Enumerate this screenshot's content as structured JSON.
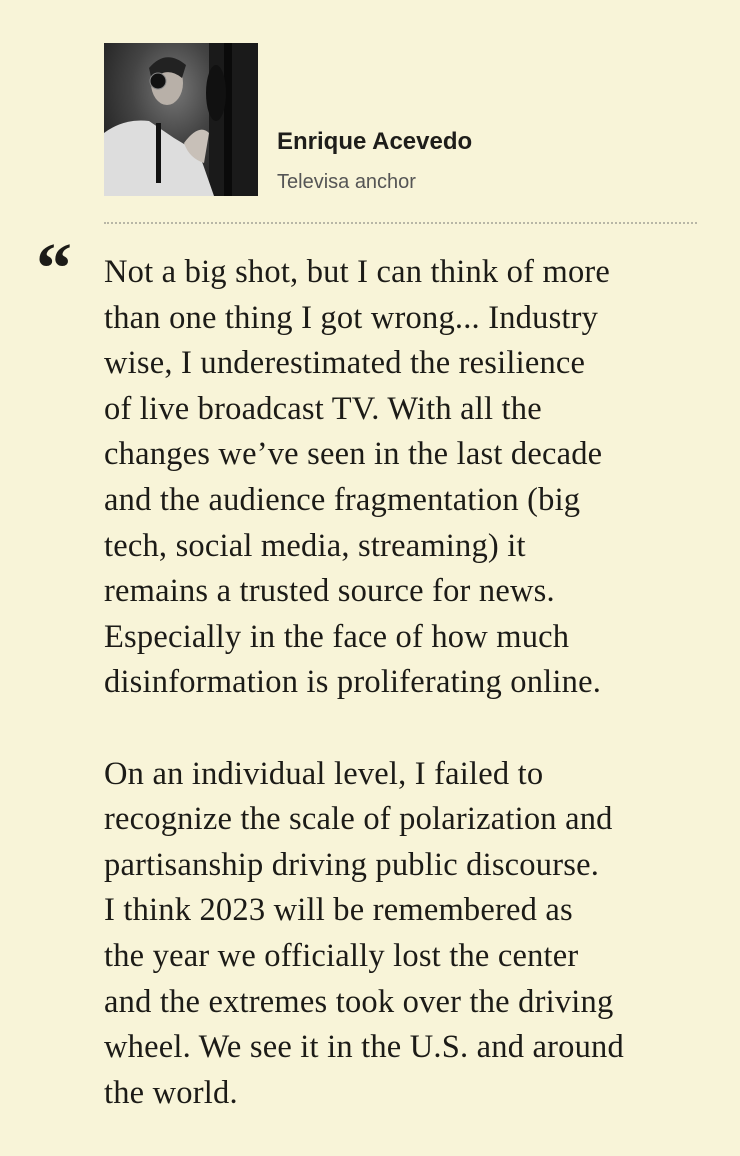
{
  "author": {
    "name": "Enrique Acevedo",
    "role": "Televisa anchor",
    "photo": "portrait-photo"
  },
  "quote_icon": "opening-quote-mark",
  "quote": {
    "paragraphs": [
      [
        "Not a big shot, but I can think of more",
        "than one thing I got wrong... Industry",
        "wise, I underestimated the resilience",
        "of live broadcast TV. With all the",
        "changes we’ve seen in the last decade",
        "and the audience fragmentation (big",
        "tech, social media, streaming) it",
        "remains a trusted source for news.",
        "Especially in the face of how much",
        "disinformation is proliferating online."
      ],
      [
        "On an individual level, I failed to",
        "recognize the scale of polarization and",
        "partisanship driving public discourse.",
        "I think 2023 will be remembered as",
        "the year we officially lost the center",
        "and the extremes took over the driving",
        "wheel. We see it in the U.S. and around",
        "the world."
      ]
    ]
  }
}
